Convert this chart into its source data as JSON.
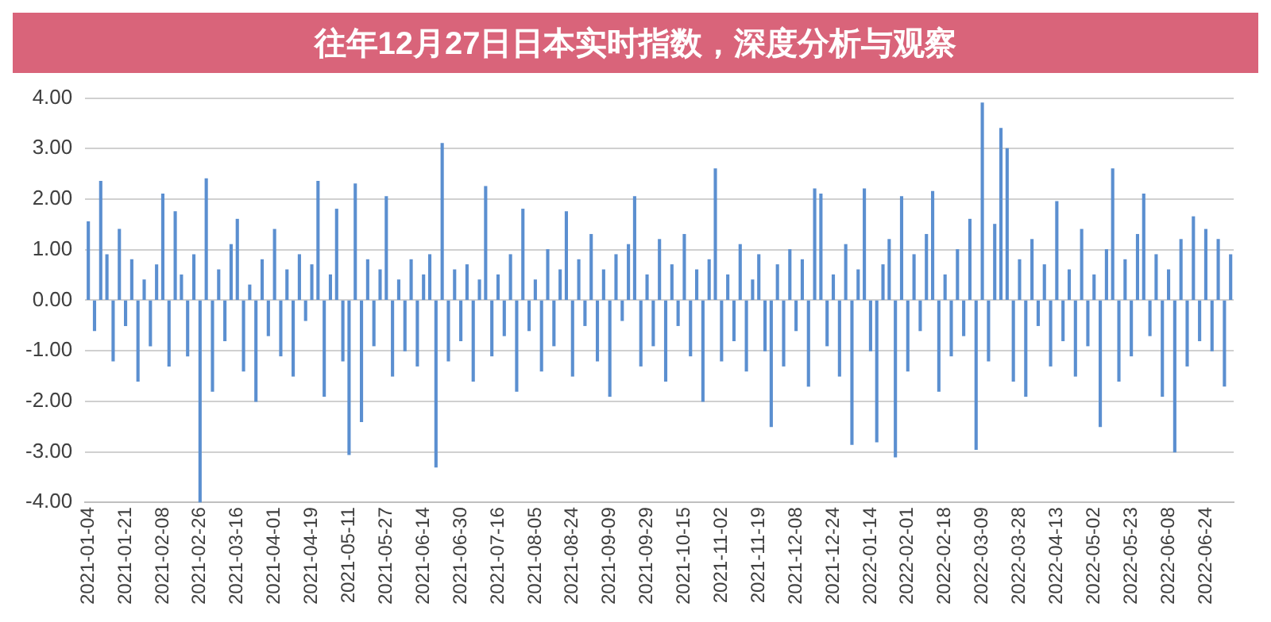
{
  "chart_data": {
    "type": "bar",
    "title": "往年12月27日日本实时指数，深度分析与观察",
    "categories": [
      "2021-01-04",
      null,
      null,
      null,
      null,
      null,
      "2021-01-21",
      null,
      null,
      null,
      null,
      null,
      "2021-02-08",
      null,
      null,
      null,
      null,
      null,
      "2021-02-26",
      null,
      null,
      null,
      null,
      null,
      "2021-03-16",
      null,
      null,
      null,
      null,
      null,
      "2021-04-01",
      null,
      null,
      null,
      null,
      null,
      "2021-04-19",
      null,
      null,
      null,
      null,
      null,
      "2021-05-11",
      null,
      null,
      null,
      null,
      null,
      "2021-05-27",
      null,
      null,
      null,
      null,
      null,
      "2021-06-14",
      null,
      null,
      null,
      null,
      null,
      "2021-06-30",
      null,
      null,
      null,
      null,
      null,
      "2021-07-16",
      null,
      null,
      null,
      null,
      null,
      "2021-08-05",
      null,
      null,
      null,
      null,
      null,
      "2021-08-24",
      null,
      null,
      null,
      null,
      null,
      "2021-09-09",
      null,
      null,
      null,
      null,
      null,
      "2021-09-29",
      null,
      null,
      null,
      null,
      null,
      "2021-10-15",
      null,
      null,
      null,
      null,
      null,
      "2021-11-02",
      null,
      null,
      null,
      null,
      null,
      "2021-11-19",
      null,
      null,
      null,
      null,
      null,
      "2021-12-08",
      null,
      null,
      null,
      null,
      null,
      "2021-12-24",
      null,
      null,
      null,
      null,
      null,
      "2022-01-14",
      null,
      null,
      null,
      null,
      null,
      "2022-02-01",
      null,
      null,
      null,
      null,
      null,
      "2022-02-18",
      null,
      null,
      null,
      null,
      null,
      "2022-03-09",
      null,
      null,
      null,
      null,
      null,
      "2022-03-28",
      null,
      null,
      null,
      null,
      null,
      "2022-04-13",
      null,
      null,
      null,
      null,
      null,
      "2022-05-02",
      null,
      null,
      null,
      null,
      null,
      "2022-05-23",
      null,
      null,
      null,
      null,
      null,
      "2022-06-08",
      null,
      null,
      null,
      null,
      null,
      "2022-06-24",
      null,
      null,
      null,
      null
    ],
    "values": [
      1.55,
      -0.6,
      2.35,
      0.9,
      -1.2,
      1.4,
      -0.5,
      0.8,
      -1.6,
      0.4,
      -0.9,
      0.7,
      2.1,
      -1.3,
      1.75,
      0.5,
      -1.1,
      0.9,
      -4.0,
      2.4,
      -1.8,
      0.6,
      -0.8,
      1.1,
      1.6,
      -1.4,
      0.3,
      -2.0,
      0.8,
      -0.7,
      1.4,
      -1.1,
      0.6,
      -1.5,
      0.9,
      -0.4,
      0.7,
      2.35,
      -1.9,
      0.5,
      1.8,
      -1.2,
      -3.05,
      2.3,
      -2.4,
      0.8,
      -0.9,
      0.6,
      2.05,
      -1.5,
      0.4,
      -1.0,
      0.8,
      -1.3,
      0.5,
      0.9,
      -3.3,
      3.1,
      -1.2,
      0.6,
      -0.8,
      0.7,
      -1.6,
      0.4,
      2.25,
      -1.1,
      0.5,
      -0.7,
      0.9,
      -1.8,
      1.8,
      -0.6,
      0.4,
      -1.4,
      1.0,
      -0.9,
      0.6,
      1.75,
      -1.5,
      0.8,
      -0.5,
      1.3,
      -1.2,
      0.6,
      -1.9,
      0.9,
      -0.4,
      1.1,
      2.05,
      -1.3,
      0.5,
      -0.9,
      1.2,
      -1.6,
      0.7,
      -0.5,
      1.3,
      -1.1,
      0.6,
      -2.0,
      0.8,
      2.6,
      -1.2,
      0.5,
      -0.8,
      1.1,
      -1.4,
      0.4,
      0.9,
      -1.0,
      -2.5,
      0.7,
      -1.3,
      1.0,
      -0.6,
      0.8,
      -1.7,
      2.2,
      2.1,
      -0.9,
      0.5,
      -1.5,
      1.1,
      -2.85,
      0.6,
      2.2,
      -1.0,
      -2.8,
      0.7,
      1.2,
      -3.1,
      2.05,
      -1.4,
      0.9,
      -0.6,
      1.3,
      2.15,
      -1.8,
      0.5,
      -1.1,
      1.0,
      -0.7,
      1.6,
      -2.95,
      3.9,
      -1.2,
      1.5,
      3.4,
      3.0,
      -1.6,
      0.8,
      -1.9,
      1.2,
      -0.5,
      0.7,
      -1.3,
      1.95,
      -0.8,
      0.6,
      -1.5,
      1.4,
      -0.9,
      0.5,
      -2.5,
      1.0,
      2.6,
      -1.6,
      0.8,
      -1.1,
      1.3,
      2.1,
      -0.7,
      0.9,
      -1.9,
      0.6,
      -3.0,
      1.2,
      -1.3,
      1.65,
      -0.8,
      1.4,
      -1.0,
      1.2,
      -1.7,
      0.9
    ],
    "color": "#5b8fd0",
    "ylim": [
      -4,
      4
    ],
    "yticks": [
      {
        "value": -4,
        "label": "-4.00"
      },
      {
        "value": -3,
        "label": "-3.00"
      },
      {
        "value": -2,
        "label": "-2.00"
      },
      {
        "value": -1,
        "label": "-1.00"
      },
      {
        "value": 0,
        "label": "0.00"
      },
      {
        "value": 1,
        "label": "1.00"
      },
      {
        "value": 2,
        "label": "2.00"
      },
      {
        "value": 3,
        "label": "3.00"
      },
      {
        "value": 4,
        "label": "4.00"
      }
    ],
    "grid": "y"
  }
}
